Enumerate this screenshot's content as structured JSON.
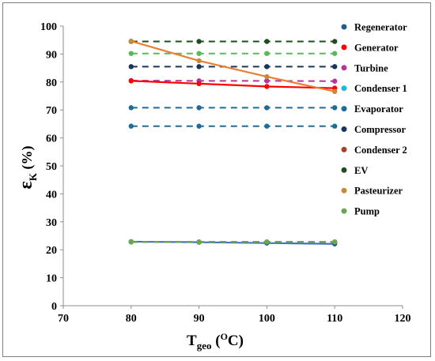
{
  "chart_data": {
    "type": "line",
    "xlabel": {
      "main": "T",
      "sub": "geo",
      "unit_open": " (",
      "unit_sup": "O",
      "unit_close": "C)"
    },
    "ylabel": {
      "main": "ε",
      "sub": "K",
      "unit": " (%)"
    },
    "xlim": [
      70,
      120
    ],
    "ylim": [
      0,
      100
    ],
    "xticks": [
      70,
      80,
      90,
      100,
      110,
      120
    ],
    "yticks": [
      0,
      10,
      20,
      30,
      40,
      50,
      60,
      70,
      80,
      90,
      100
    ],
    "grid": false,
    "legend_position": "right",
    "x": [
      80,
      90,
      100,
      110
    ],
    "series": [
      {
        "name": "Regenerator",
        "values": [
          22.9,
          22.7,
          22.4,
          22.1
        ],
        "color": "#1f5f8b",
        "line_color": "#4472c4",
        "style": "solid"
      },
      {
        "name": "Generator",
        "values": [
          80.4,
          79.4,
          78.4,
          77.8
        ],
        "color": "#ff0000",
        "line_color": "#ff0000",
        "style": "solid"
      },
      {
        "name": "Turbine",
        "values": [
          80.5,
          80.4,
          80.4,
          80.3
        ],
        "color": "#b5359b",
        "line_color": "#b5359b",
        "style": "dashed"
      },
      {
        "name": "Condenser 1",
        "values": [
          22.8,
          22.8,
          22.8,
          22.8
        ],
        "color": "#1fb6e0",
        "line_color": "#1fb6e0",
        "style": "dashed"
      },
      {
        "name": "Evaporator",
        "values": [
          70.8,
          70.8,
          70.8,
          70.8
        ],
        "color": "#1f6d95",
        "line_color": "#1f6d95",
        "style": "dashed"
      },
      {
        "name": "Compressor",
        "values": [
          85.5,
          85.5,
          85.5,
          85.5
        ],
        "color": "#17365d",
        "line_color": "#17365d",
        "style": "dashed"
      },
      {
        "name": "Condenser 2",
        "values": [
          22.8,
          22.8,
          22.8,
          22.8
        ],
        "color": "#a5432a",
        "line_color": "#a5432a",
        "style": "dashed"
      },
      {
        "name": "EV",
        "values": [
          94.5,
          94.5,
          94.5,
          94.5
        ],
        "color": "#1e4d1e",
        "line_color": "#1e4d1e",
        "style": "dashed"
      },
      {
        "name": "Pasteurizer",
        "values": [
          94.6,
          87.6,
          81.9,
          76.6
        ],
        "color": "#c88a3a",
        "line_color": "#ed7d31",
        "style": "solid"
      },
      {
        "name": "Pump",
        "values": [
          22.8,
          22.8,
          22.8,
          22.8
        ],
        "color": "#6aa84f",
        "line_color": "#6aa84f",
        "style": "dashed"
      },
      {
        "name": "",
        "values": [
          90.2,
          90.2,
          90.2,
          90.2
        ],
        "color": "#5cb85c",
        "line_color": "#5cb85c",
        "style": "dashed"
      },
      {
        "name": "",
        "values": [
          64.2,
          64.2,
          64.2,
          64.2
        ],
        "color": "#1f6d95",
        "line_color": "#1f6d95",
        "style": "dashed"
      }
    ]
  }
}
